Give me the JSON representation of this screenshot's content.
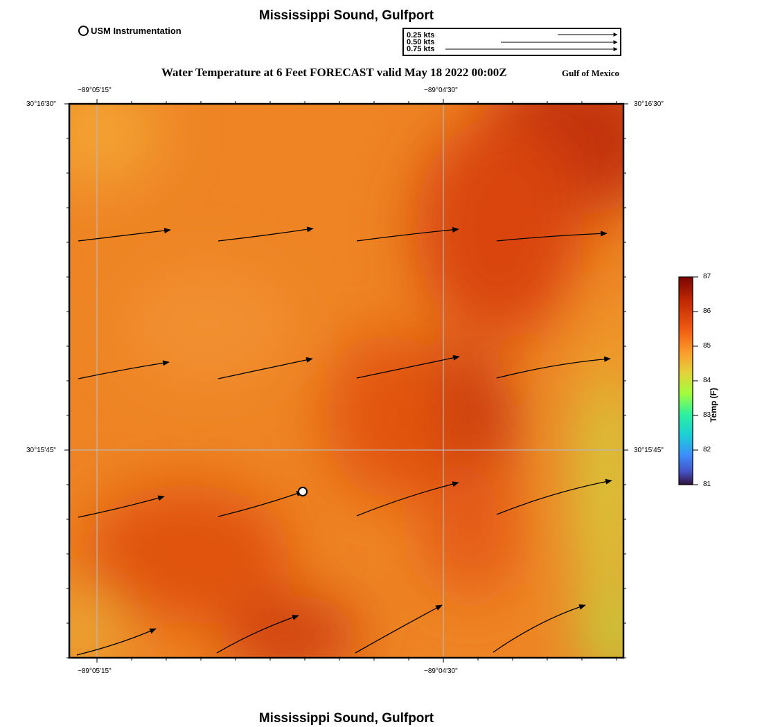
{
  "title": "Mississippi Sound, Gulfport",
  "footer_title": "Mississippi Sound, Gulfport",
  "subtitle": "Water Temperature at 6 Feet FORECAST valid May 18 2022 00:00Z",
  "region_label": "Gulf of Mexico",
  "station_legend": "USM Instrumentation",
  "speed_legend": [
    "0.25 kts",
    "0.50 kts",
    "0.75 kts"
  ],
  "lon_labels": [
    "−89°05'15\"",
    "−89°04'30\""
  ],
  "lat_labels": [
    "30°16'30\"",
    "30°15'45\""
  ],
  "colorbar": {
    "label": "Temp (F)",
    "ticks": [
      "87",
      "86",
      "85",
      "84",
      "83",
      "82",
      "81"
    ],
    "min": 81,
    "max": 87
  },
  "colors": {
    "hot": "#c43208",
    "warm": "#e55a15",
    "mid": "#f08a2a",
    "cool": "#d8d23a"
  }
}
